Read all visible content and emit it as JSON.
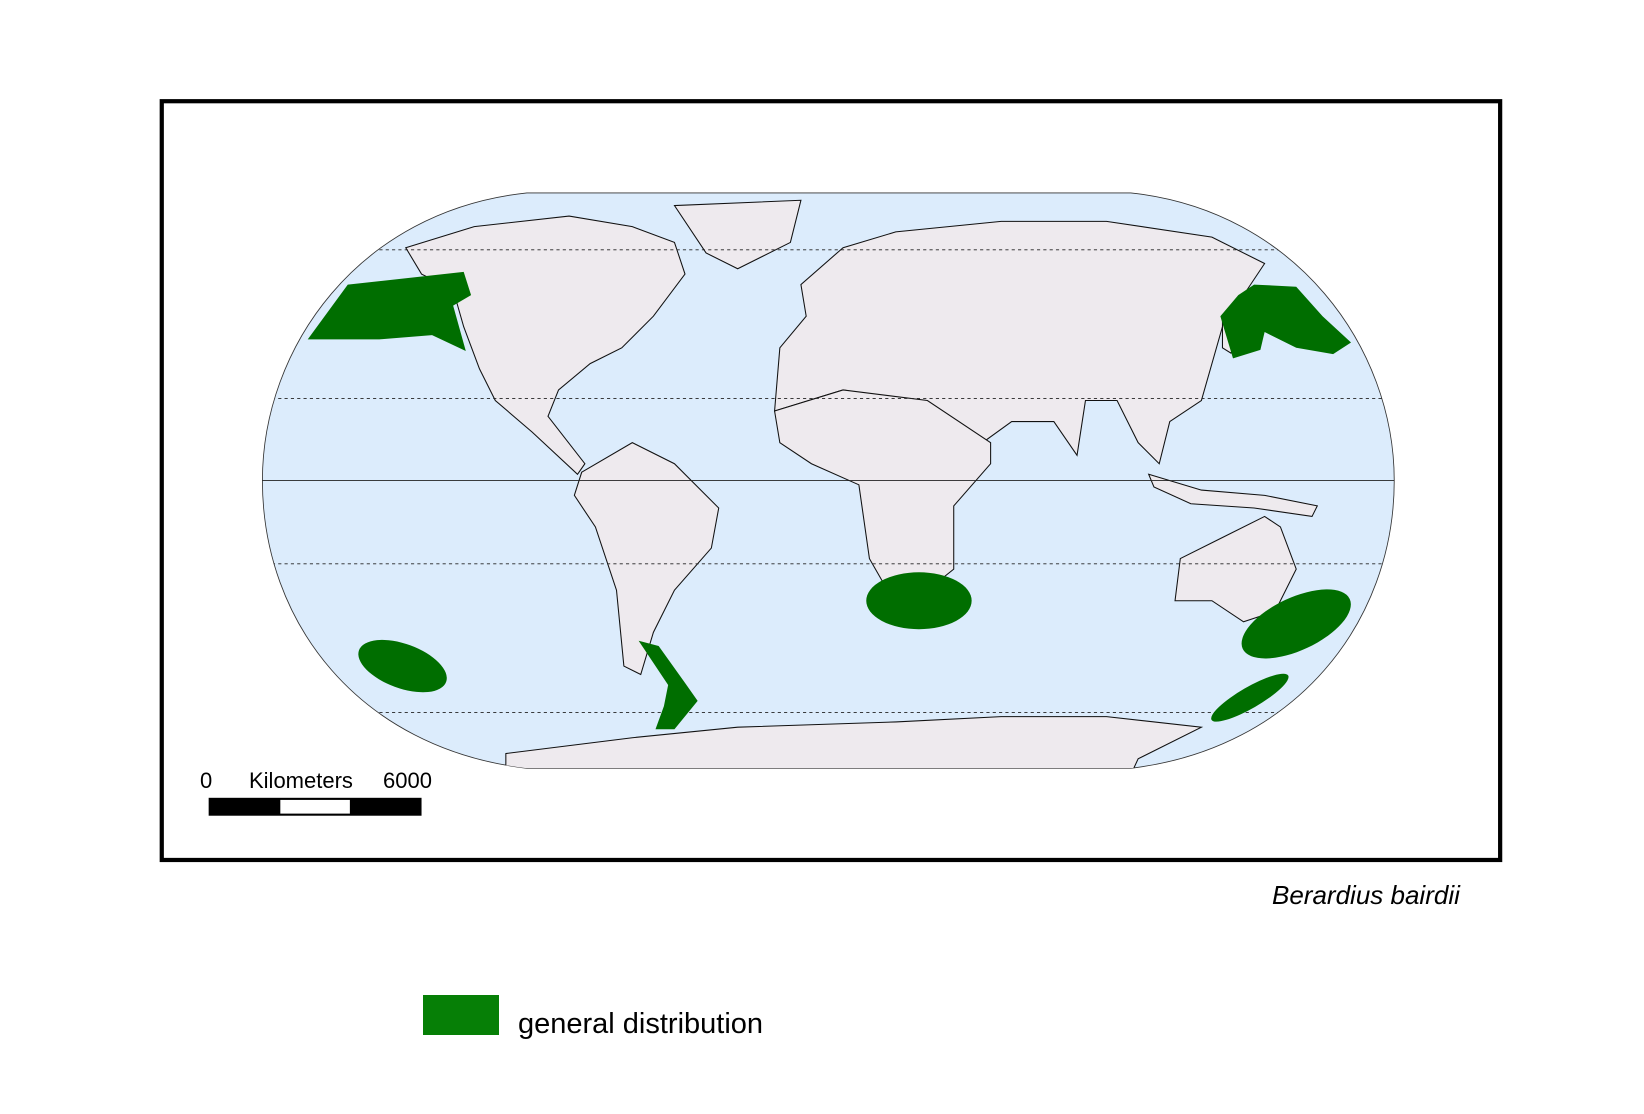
{
  "map": {
    "species_label": "Berardius bairdii",
    "projection": "Robinson",
    "colors": {
      "ocean": "#dcecfc",
      "land": "#eeeaee",
      "distribution_map": "#006e00",
      "distribution_legend": "#067f06",
      "frame": "#000000"
    },
    "distribution_areas": [
      "North-east Pacific",
      "North-west Pacific / Japan",
      "Southern Africa",
      "South-east Pacific",
      "Southern South America",
      "New Zealand / Tasman Sea",
      "Southern Ocean south of New Zealand"
    ]
  },
  "scale_bar": {
    "start_label": "0",
    "unit_label": "Kilometers",
    "end_label": "6000"
  },
  "legend": {
    "items": [
      {
        "label": "general distribution",
        "color": "#067f06"
      }
    ]
  }
}
